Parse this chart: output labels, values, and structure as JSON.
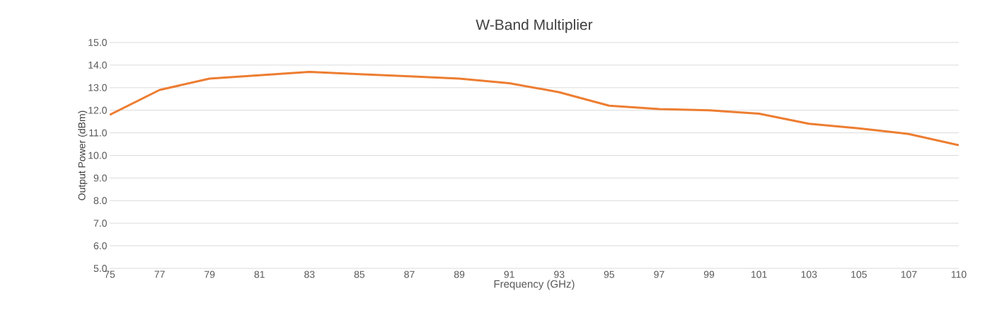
{
  "chart_data": {
    "type": "line",
    "title": "W-Band Multiplier",
    "xlabel": "Frequency (GHz)",
    "ylabel": "Output Power (dBm)",
    "categories": [
      "75",
      "77",
      "79",
      "81",
      "83",
      "85",
      "87",
      "89",
      "91",
      "93",
      "95",
      "97",
      "99",
      "101",
      "103",
      "105",
      "107",
      "110"
    ],
    "series": [
      {
        "color": "#ed7d31",
        "values": [
          11.8,
          12.9,
          13.4,
          13.55,
          13.7,
          13.6,
          13.5,
          13.4,
          13.2,
          12.8,
          12.2,
          12.05,
          12.0,
          11.85,
          11.4,
          11.2,
          10.95,
          10.45
        ]
      }
    ],
    "ylim": [
      5,
      15
    ],
    "yticks": [
      {
        "value": 5,
        "label": "5.0"
      },
      {
        "value": 6,
        "label": "6.0"
      },
      {
        "value": 7,
        "label": "7.0"
      },
      {
        "value": 8,
        "label": "8.0"
      },
      {
        "value": 9,
        "label": "9.0"
      },
      {
        "value": 10,
        "label": "10.0"
      },
      {
        "value": 11,
        "label": "11.0"
      },
      {
        "value": 12,
        "label": "12.0"
      },
      {
        "value": 13,
        "label": "13.0"
      },
      {
        "value": 14,
        "label": "14.0"
      },
      {
        "value": 15,
        "label": "15.0"
      }
    ],
    "grid": "y",
    "marker": "none",
    "line_style": "solid"
  }
}
